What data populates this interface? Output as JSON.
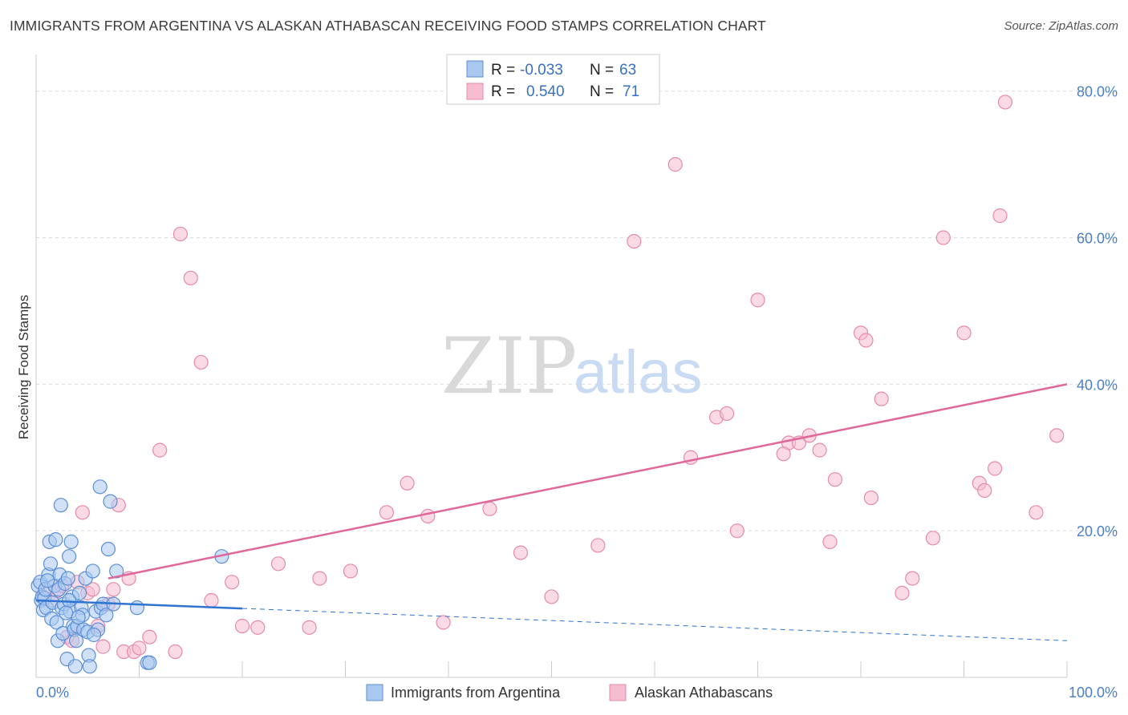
{
  "title": "IMMIGRANTS FROM ARGENTINA VS ALASKAN ATHABASCAN RECEIVING FOOD STAMPS CORRELATION CHART",
  "source": "Source: ZipAtlas.com",
  "watermark": {
    "zip": "ZIP",
    "atlas": "atlas"
  },
  "colors": {
    "blue_fill": "#a9c8f0",
    "blue_stroke": "#5b8fd6",
    "blue_line": "#2f74d0",
    "pink_fill": "#f6bcd0",
    "pink_stroke": "#e58aab",
    "pink_line": "#e0679a",
    "tick_text": "#4a7fc8",
    "grid": "#dddddd"
  },
  "legend": {
    "rows": [
      {
        "r_label": "R =",
        "r_value": "-0.033",
        "n_label": "N =",
        "n_value": "63"
      },
      {
        "r_label": "R =",
        "r_value": "0.540",
        "n_label": "N =",
        "n_value": "71"
      }
    ]
  },
  "chart_data": {
    "type": "scatter",
    "title": "IMMIGRANTS FROM ARGENTINA VS ALASKAN ATHABASCAN RECEIVING FOOD STAMPS CORRELATION CHART",
    "xlabel": "",
    "ylabel": "Receiving Food Stamps",
    "xlim": [
      0,
      100
    ],
    "ylim": [
      0,
      85
    ],
    "x_tick_labels": [
      "0.0%",
      "100.0%"
    ],
    "y_ticks": [
      20,
      40,
      60,
      80
    ],
    "y_tick_labels": [
      "20.0%",
      "40.0%",
      "60.0%",
      "80.0%"
    ],
    "grid": true,
    "legend_position": "top-center",
    "series": [
      {
        "name": "Immigrants from Argentina",
        "color": "#a9c8f0",
        "points": [
          [
            0.2,
            12.5
          ],
          [
            0.4,
            13.0
          ],
          [
            0.5,
            10.5
          ],
          [
            0.6,
            11.0
          ],
          [
            0.7,
            9.2
          ],
          [
            0.8,
            10.8
          ],
          [
            0.9,
            12.0
          ],
          [
            1.0,
            9.5
          ],
          [
            1.2,
            14.0
          ],
          [
            1.3,
            18.5
          ],
          [
            1.4,
            15.5
          ],
          [
            1.5,
            8.0
          ],
          [
            1.6,
            10.2
          ],
          [
            1.8,
            12.5
          ],
          [
            1.9,
            18.8
          ],
          [
            2.0,
            7.5
          ],
          [
            2.1,
            5.0
          ],
          [
            2.2,
            12.0
          ],
          [
            2.3,
            14.0
          ],
          [
            2.4,
            23.5
          ],
          [
            2.5,
            9.5
          ],
          [
            2.6,
            6.0
          ],
          [
            2.7,
            10.0
          ],
          [
            2.8,
            12.8
          ],
          [
            3.0,
            2.5
          ],
          [
            3.1,
            13.5
          ],
          [
            3.2,
            16.5
          ],
          [
            3.3,
            9.0
          ],
          [
            3.4,
            18.5
          ],
          [
            3.5,
            11.0
          ],
          [
            3.6,
            7.0
          ],
          [
            3.7,
            6.5
          ],
          [
            3.8,
            1.5
          ],
          [
            3.9,
            5.0
          ],
          [
            4.0,
            7.0
          ],
          [
            4.2,
            11.5
          ],
          [
            4.4,
            9.5
          ],
          [
            4.5,
            8.5
          ],
          [
            4.6,
            6.5
          ],
          [
            4.8,
            13.5
          ],
          [
            5.0,
            6.2
          ],
          [
            5.1,
            3.0
          ],
          [
            5.2,
            1.5
          ],
          [
            5.5,
            14.5
          ],
          [
            5.8,
            9.0
          ],
          [
            6.0,
            6.5
          ],
          [
            6.2,
            26.0
          ],
          [
            6.3,
            9.5
          ],
          [
            6.5,
            10.0
          ],
          [
            6.8,
            8.5
          ],
          [
            7.0,
            17.5
          ],
          [
            7.2,
            24.0
          ],
          [
            7.5,
            10.0
          ],
          [
            7.8,
            14.5
          ],
          [
            9.8,
            9.5
          ],
          [
            10.8,
            2.0
          ],
          [
            11.0,
            2.0
          ],
          [
            18.0,
            16.5
          ],
          [
            3.2,
            10.5
          ],
          [
            2.9,
            8.8
          ],
          [
            1.1,
            13.2
          ],
          [
            4.1,
            8.2
          ],
          [
            5.6,
            5.8
          ]
        ]
      },
      {
        "name": "Alaskan Athabascans",
        "color": "#f6bcd0",
        "points": [
          [
            0.8,
            11.5
          ],
          [
            1.5,
            10.5
          ],
          [
            2.0,
            11.8
          ],
          [
            2.5,
            12.5
          ],
          [
            3.0,
            5.5
          ],
          [
            3.5,
            5.0
          ],
          [
            4.0,
            13.0
          ],
          [
            4.5,
            22.5
          ],
          [
            5.0,
            11.5
          ],
          [
            5.5,
            12.0
          ],
          [
            6.0,
            7.0
          ],
          [
            6.5,
            4.2
          ],
          [
            7.0,
            10.0
          ],
          [
            7.5,
            12.0
          ],
          [
            8.0,
            23.5
          ],
          [
            8.5,
            3.5
          ],
          [
            9.0,
            13.5
          ],
          [
            9.5,
            3.5
          ],
          [
            10.0,
            4.0
          ],
          [
            11.0,
            5.5
          ],
          [
            12.0,
            31.0
          ],
          [
            13.5,
            3.5
          ],
          [
            14.0,
            60.5
          ],
          [
            15.0,
            54.5
          ],
          [
            16.0,
            43.0
          ],
          [
            17.0,
            10.5
          ],
          [
            19.0,
            13.0
          ],
          [
            20.0,
            7.0
          ],
          [
            21.5,
            6.8
          ],
          [
            23.5,
            15.5
          ],
          [
            26.5,
            6.8
          ],
          [
            27.5,
            13.5
          ],
          [
            30.5,
            14.5
          ],
          [
            34.0,
            22.5
          ],
          [
            36.0,
            26.5
          ],
          [
            38.0,
            22.0
          ],
          [
            39.5,
            7.5
          ],
          [
            44.0,
            23.0
          ],
          [
            47.0,
            17.0
          ],
          [
            50.0,
            11.0
          ],
          [
            54.5,
            18.0
          ],
          [
            58.0,
            59.5
          ],
          [
            62.0,
            70.0
          ],
          [
            63.5,
            30.0
          ],
          [
            66.0,
            35.5
          ],
          [
            67.0,
            36.0
          ],
          [
            68.0,
            20.0
          ],
          [
            70.0,
            51.5
          ],
          [
            73.0,
            32.0
          ],
          [
            74.0,
            32.0
          ],
          [
            75.0,
            33.0
          ],
          [
            77.0,
            18.5
          ],
          [
            77.5,
            27.0
          ],
          [
            80.0,
            47.0
          ],
          [
            80.5,
            46.0
          ],
          [
            81.0,
            24.5
          ],
          [
            82.0,
            38.0
          ],
          [
            84.0,
            11.5
          ],
          [
            85.0,
            13.5
          ],
          [
            87.0,
            19.0
          ],
          [
            88.0,
            60.0
          ],
          [
            90.0,
            47.0
          ],
          [
            91.5,
            26.5
          ],
          [
            92.0,
            25.5
          ],
          [
            93.0,
            28.5
          ],
          [
            94.0,
            78.5
          ],
          [
            97.0,
            22.5
          ],
          [
            99.0,
            33.0
          ],
          [
            76.0,
            31.0
          ],
          [
            72.5,
            30.5
          ],
          [
            93.5,
            63.0
          ]
        ]
      }
    ],
    "trend_lines": [
      {
        "series": "Immigrants from Argentina",
        "x": [
          0,
          20
        ],
        "y": [
          10.5,
          9.4
        ],
        "dashed_extension": [
          20,
          100
        ],
        "y_end": 5.0
      },
      {
        "series": "Alaskan Athabascans",
        "x": [
          7,
          100
        ],
        "y": [
          13.5,
          40.0
        ]
      }
    ]
  }
}
